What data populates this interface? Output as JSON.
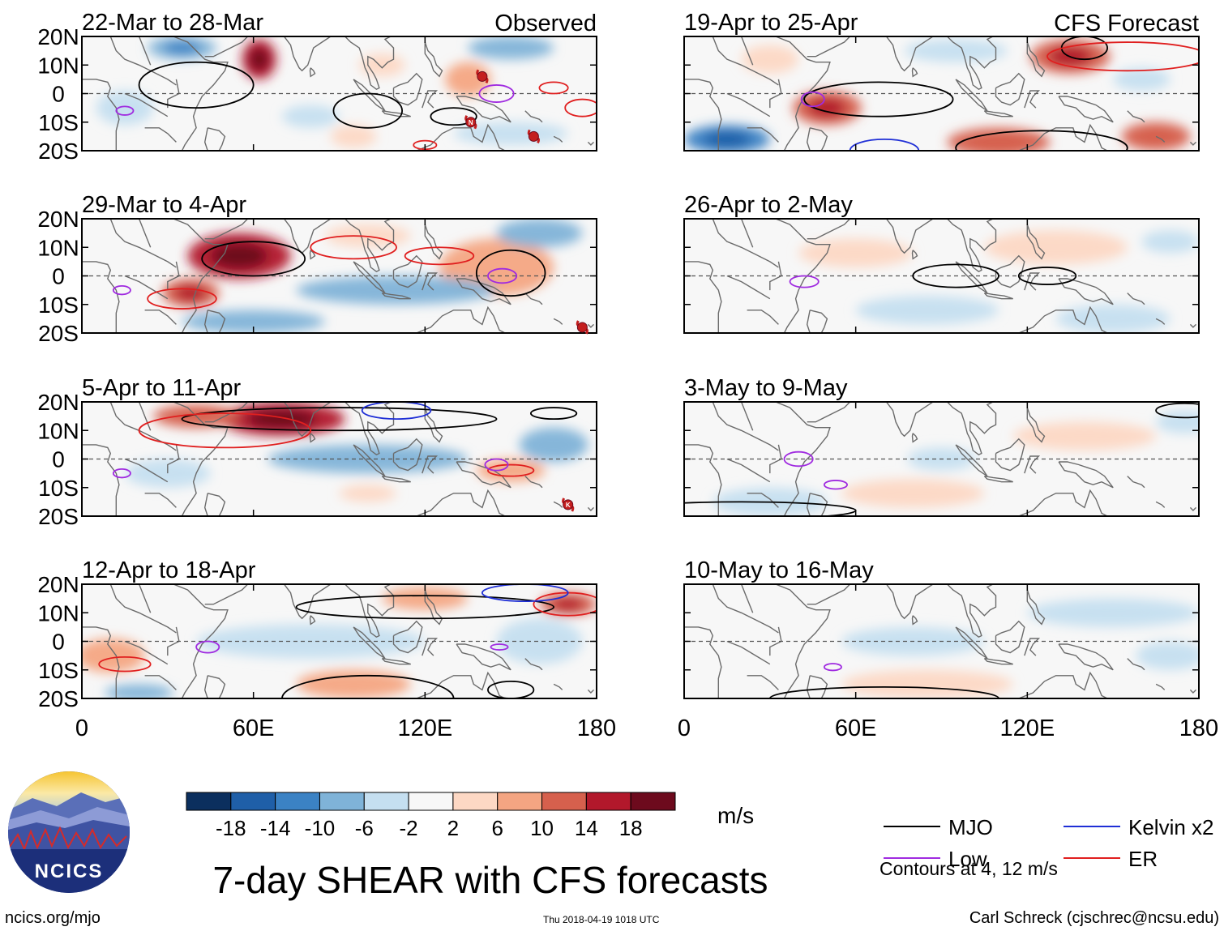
{
  "chart_data": {
    "type": "heatmap",
    "title": "7-day SHEAR with CFS forecasts",
    "units": "m/s",
    "column_labels": [
      "Observed",
      "CFS Forecast"
    ],
    "xlim": [
      0,
      180
    ],
    "ylim": [
      -20,
      20
    ],
    "x_ticks": [
      0,
      60,
      120,
      180
    ],
    "x_tick_labels": [
      "0",
      "60E",
      "120E",
      "180"
    ],
    "y_ticks": [
      20,
      10,
      0,
      -10,
      -20
    ],
    "y_tick_labels": [
      "20N",
      "10N",
      "0",
      "10S",
      "20S"
    ],
    "colorbar": {
      "colors": [
        "#0b2f5e",
        "#1f5fa8",
        "#3b82c4",
        "#7fb3d8",
        "#c5dff0",
        "#f7f7f7",
        "#fdd8c4",
        "#f4a582",
        "#d6604d",
        "#b2182b",
        "#6d0a1d"
      ],
      "levels": [
        "-18",
        "-14",
        "-10",
        "-6",
        "-2",
        "2",
        "6",
        "10",
        "14",
        "18"
      ]
    },
    "legend": [
      {
        "label": "MJO",
        "color": "#000000"
      },
      {
        "label": "Kelvin x2",
        "color": "#1f2fd6"
      },
      {
        "label": "Low",
        "color": "#a02be0"
      },
      {
        "label": "ER",
        "color": "#e01f1f"
      }
    ],
    "contour_note": "Contours at 4, 12 m/s",
    "panels": [
      {
        "label": "22-Mar to 28-Mar",
        "group": "observed",
        "blobs": [
          [
            62,
            12,
            6,
            7,
            16
          ],
          [
            35,
            16,
            12,
            4,
            -10
          ],
          [
            150,
            16,
            15,
            4,
            -8
          ],
          [
            135,
            5,
            8,
            6,
            8
          ],
          [
            80,
            -8,
            10,
            4,
            -6
          ],
          [
            150,
            -14,
            20,
            4,
            -4
          ],
          [
            105,
            10,
            8,
            4,
            4
          ],
          [
            15,
            -5,
            10,
            6,
            -4
          ],
          [
            95,
            -15,
            8,
            4,
            4
          ]
        ],
        "contours": [
          {
            "color": "mjo",
            "lon": 40,
            "lat": 3,
            "rx": 20,
            "ry": 8
          },
          {
            "color": "mjo",
            "lon": 100,
            "lat": -6,
            "rx": 12,
            "ry": 6
          },
          {
            "color": "mjo",
            "lon": 130,
            "lat": -8,
            "rx": 8,
            "ry": 3
          },
          {
            "color": "low",
            "lon": 145,
            "lat": 0,
            "rx": 6,
            "ry": 3
          },
          {
            "color": "low",
            "lon": 15,
            "lat": -6,
            "rx": 3,
            "ry": 1.5
          },
          {
            "color": "er",
            "lon": 165,
            "lat": 2,
            "rx": 5,
            "ry": 2
          },
          {
            "color": "er",
            "lon": 175,
            "lat": -5,
            "rx": 6,
            "ry": 3
          },
          {
            "color": "er",
            "lon": 120,
            "lat": -18,
            "rx": 4,
            "ry": 1.5
          }
        ]
      },
      {
        "label": "19-Apr to 25-Apr",
        "group": "forecast",
        "blobs": [
          [
            50,
            -5,
            12,
            6,
            13
          ],
          [
            135,
            13,
            14,
            6,
            12
          ],
          [
            110,
            -17,
            18,
            5,
            10
          ],
          [
            165,
            -15,
            12,
            5,
            10
          ],
          [
            15,
            -16,
            15,
            5,
            -12
          ],
          [
            95,
            15,
            18,
            4,
            -4
          ],
          [
            160,
            5,
            10,
            4,
            -4
          ],
          [
            30,
            12,
            10,
            5,
            4
          ]
        ],
        "contours": [
          {
            "color": "mjo",
            "lon": 68,
            "lat": -2,
            "rx": 26,
            "ry": 6
          },
          {
            "color": "mjo",
            "lon": 140,
            "lat": 16,
            "rx": 8,
            "ry": 4
          },
          {
            "color": "mjo",
            "lon": 125,
            "lat": -19,
            "rx": 30,
            "ry": 6
          },
          {
            "color": "low",
            "lon": 45,
            "lat": -2,
            "rx": 4,
            "ry": 2.5
          },
          {
            "color": "er",
            "lon": 155,
            "lat": 13,
            "rx": 28,
            "ry": 5
          },
          {
            "color": "kelvin",
            "lon": 70,
            "lat": -20,
            "rx": 12,
            "ry": 4
          }
        ]
      },
      {
        "label": "29-Mar to 4-Apr",
        "group": "observed",
        "blobs": [
          [
            55,
            7,
            18,
            8,
            15
          ],
          [
            38,
            -6,
            10,
            5,
            12
          ],
          [
            145,
            3,
            20,
            10,
            9
          ],
          [
            110,
            -5,
            35,
            5,
            -8
          ],
          [
            60,
            -16,
            25,
            4,
            -7
          ],
          [
            160,
            15,
            15,
            5,
            -9
          ],
          [
            100,
            14,
            15,
            4,
            4
          ]
        ],
        "contours": [
          {
            "color": "mjo",
            "lon": 60,
            "lat": 6,
            "rx": 18,
            "ry": 6
          },
          {
            "color": "mjo",
            "lon": 150,
            "lat": 1,
            "rx": 12,
            "ry": 8
          },
          {
            "color": "er",
            "lon": 95,
            "lat": 10,
            "rx": 15,
            "ry": 4
          },
          {
            "color": "er",
            "lon": 125,
            "lat": 7,
            "rx": 12,
            "ry": 3
          },
          {
            "color": "er",
            "lon": 35,
            "lat": -8,
            "rx": 12,
            "ry": 3.5
          },
          {
            "color": "low",
            "lon": 147,
            "lat": 0,
            "rx": 5,
            "ry": 2.5
          },
          {
            "color": "low",
            "lon": 14,
            "lat": -5,
            "rx": 3,
            "ry": 1.5
          }
        ]
      },
      {
        "label": "26-Apr to 2-May",
        "group": "forecast",
        "blobs": [
          [
            130,
            10,
            25,
            6,
            5
          ],
          [
            60,
            8,
            20,
            5,
            4
          ],
          [
            85,
            -12,
            25,
            5,
            -4
          ],
          [
            150,
            -15,
            20,
            5,
            -4
          ],
          [
            170,
            12,
            10,
            4,
            -3
          ]
        ],
        "contours": [
          {
            "color": "mjo",
            "lon": 95,
            "lat": 0,
            "rx": 15,
            "ry": 4
          },
          {
            "color": "mjo",
            "lon": 127,
            "lat": 0,
            "rx": 10,
            "ry": 3
          },
          {
            "color": "low",
            "lon": 42,
            "lat": -2,
            "rx": 5,
            "ry": 2
          }
        ]
      },
      {
        "label": "5-Apr to 11-Apr",
        "group": "observed",
        "blobs": [
          [
            70,
            14,
            22,
            6,
            16
          ],
          [
            40,
            15,
            15,
            4,
            10
          ],
          [
            150,
            -4,
            12,
            4,
            8
          ],
          [
            100,
            0,
            35,
            5,
            -7
          ],
          [
            165,
            5,
            12,
            6,
            -8
          ],
          [
            30,
            -5,
            15,
            5,
            -6
          ],
          [
            100,
            -12,
            10,
            3,
            4
          ]
        ],
        "contours": [
          {
            "color": "mjo",
            "lon": 90,
            "lat": 14,
            "rx": 55,
            "ry": 4
          },
          {
            "color": "mjo",
            "lon": 165,
            "lat": 16,
            "rx": 8,
            "ry": 2
          },
          {
            "color": "er",
            "lon": 50,
            "lat": 10,
            "rx": 30,
            "ry": 6
          },
          {
            "color": "er",
            "lon": 150,
            "lat": -4,
            "rx": 8,
            "ry": 2
          },
          {
            "color": "kelvin",
            "lon": 110,
            "lat": 17,
            "rx": 12,
            "ry": 3
          },
          {
            "color": "low",
            "lon": 145,
            "lat": -2,
            "rx": 4,
            "ry": 2
          },
          {
            "color": "low",
            "lon": 14,
            "lat": -5,
            "rx": 3,
            "ry": 1.5
          }
        ]
      },
      {
        "label": "3-May to 9-May",
        "group": "forecast",
        "blobs": [
          [
            80,
            -12,
            25,
            5,
            5
          ],
          [
            90,
            0,
            12,
            4,
            -4
          ],
          [
            140,
            8,
            25,
            5,
            3
          ],
          [
            175,
            13,
            10,
            4,
            -3
          ],
          [
            30,
            -15,
            20,
            5,
            -3
          ]
        ],
        "contours": [
          {
            "color": "mjo",
            "lon": 175,
            "lat": 17,
            "rx": 10,
            "ry": 2.5
          },
          {
            "color": "mjo",
            "lon": 20,
            "lat": -18,
            "rx": 40,
            "ry": 3
          },
          {
            "color": "low",
            "lon": 40,
            "lat": 0,
            "rx": 5,
            "ry": 2.5
          },
          {
            "color": "low",
            "lon": 53,
            "lat": -9,
            "rx": 4,
            "ry": 1.5
          }
        ]
      },
      {
        "label": "12-Apr to 18-Apr",
        "group": "observed",
        "blobs": [
          [
            170,
            13,
            10,
            4,
            12
          ],
          [
            120,
            15,
            15,
            4,
            8
          ],
          [
            95,
            -15,
            20,
            5,
            8
          ],
          [
            10,
            -5,
            12,
            6,
            6
          ],
          [
            80,
            0,
            40,
            6,
            -6
          ],
          [
            160,
            0,
            15,
            8,
            -4
          ],
          [
            20,
            -18,
            12,
            3,
            -8
          ]
        ],
        "contours": [
          {
            "color": "mjo",
            "lon": 120,
            "lat": 12,
            "rx": 45,
            "ry": 4
          },
          {
            "color": "mjo",
            "lon": 100,
            "lat": -20,
            "rx": 30,
            "ry": 8
          },
          {
            "color": "mjo",
            "lon": 150,
            "lat": -17,
            "rx": 8,
            "ry": 3
          },
          {
            "color": "er",
            "lon": 15,
            "lat": -8,
            "rx": 9,
            "ry": 2.5
          },
          {
            "color": "er",
            "lon": 170,
            "lat": 13,
            "rx": 12,
            "ry": 4
          },
          {
            "color": "kelvin",
            "lon": 155,
            "lat": 17,
            "rx": 15,
            "ry": 3
          },
          {
            "color": "low",
            "lon": 44,
            "lat": -2,
            "rx": 4,
            "ry": 2
          },
          {
            "color": "low",
            "lon": 146,
            "lat": -2,
            "rx": 3,
            "ry": 1
          }
        ]
      },
      {
        "label": "10-May to 16-May",
        "group": "forecast",
        "blobs": [
          [
            80,
            0,
            25,
            5,
            -5
          ],
          [
            85,
            -15,
            30,
            5,
            4
          ],
          [
            150,
            10,
            30,
            5,
            -3
          ],
          [
            170,
            -5,
            12,
            5,
            -3
          ]
        ],
        "contours": [
          {
            "color": "mjo",
            "lon": 70,
            "lat": -20,
            "rx": 40,
            "ry": 4
          },
          {
            "color": "low",
            "lon": 52,
            "lat": -9,
            "rx": 3,
            "ry": 1.2
          }
        ]
      }
    ],
    "cyclone_markers": [
      {
        "panel": 0,
        "lon": 140,
        "lat": 6,
        "letter": ""
      },
      {
        "panel": 0,
        "lon": 136,
        "lat": -10,
        "letter": "N"
      },
      {
        "panel": 0,
        "lon": 158,
        "lat": -15,
        "letter": ""
      },
      {
        "panel": 2,
        "lon": 175,
        "lat": -18,
        "letter": ""
      },
      {
        "panel": 4,
        "lon": 170,
        "lat": -16,
        "letter": "K"
      }
    ]
  },
  "footer": {
    "logo_text": "NCICS",
    "left_url": "ncics.org/mjo",
    "timestamp": "Thu 2018-04-19 1018 UTC",
    "credit": "Carl Schreck (cjschrec@ncsu.edu)"
  }
}
